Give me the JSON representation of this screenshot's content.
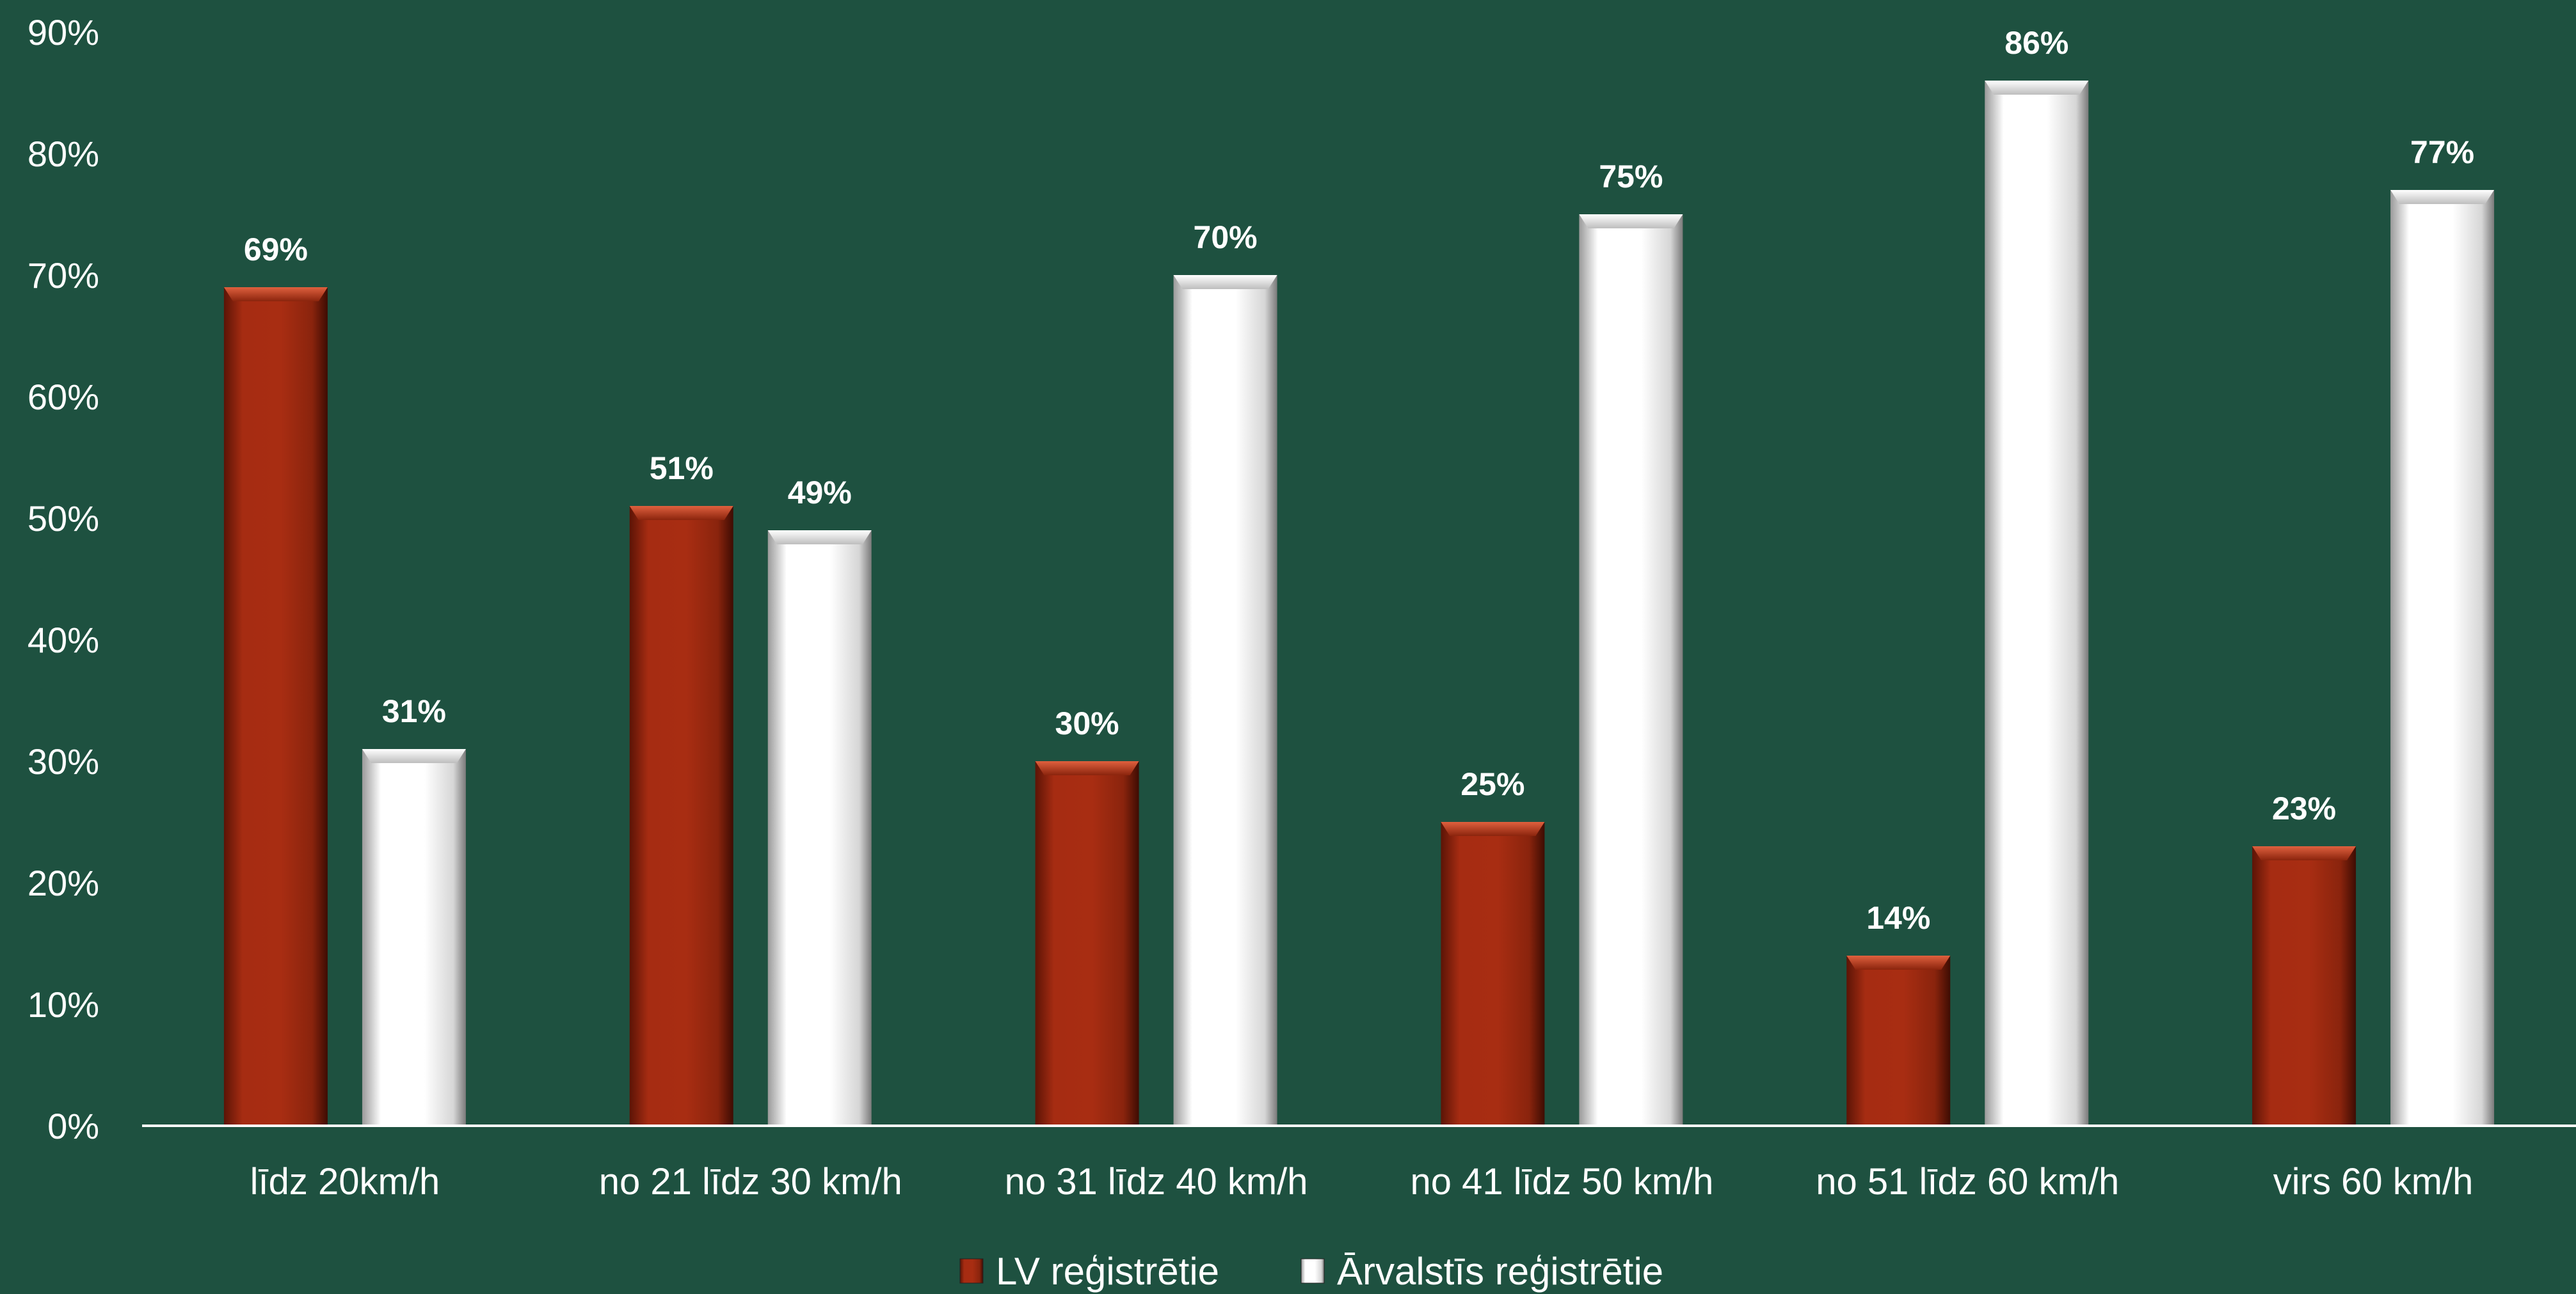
{
  "chart_data": {
    "type": "bar",
    "categories": [
      "līdz 20km/h",
      "no 21 līdz 30 km/h",
      "no 31 līdz 40 km/h",
      "no 41 līdz 50 km/h",
      "no 51 līdz 60 km/h",
      "virs 60 km/h"
    ],
    "series": [
      {
        "name": "LV reģistrētie",
        "values": [
          69,
          51,
          30,
          25,
          14,
          23
        ],
        "labels": [
          "69%",
          "51%",
          "30%",
          "25%",
          "14%",
          "23%"
        ],
        "color": "#a02a10"
      },
      {
        "name": "Ārvalstīs reģistrētie",
        "values": [
          31,
          49,
          70,
          75,
          86,
          77
        ],
        "labels": [
          "31%",
          "49%",
          "70%",
          "75%",
          "86%",
          "77%"
        ],
        "color": "#ffffff"
      }
    ],
    "y_ticks": [
      "0%",
      "10%",
      "20%",
      "30%",
      "40%",
      "50%",
      "60%",
      "70%",
      "80%",
      "90%"
    ],
    "ylim": [
      0,
      90
    ],
    "grid": false,
    "legend_position": "bottom",
    "colors": {
      "background": "#1e5140",
      "axis": "#ffffff"
    }
  }
}
